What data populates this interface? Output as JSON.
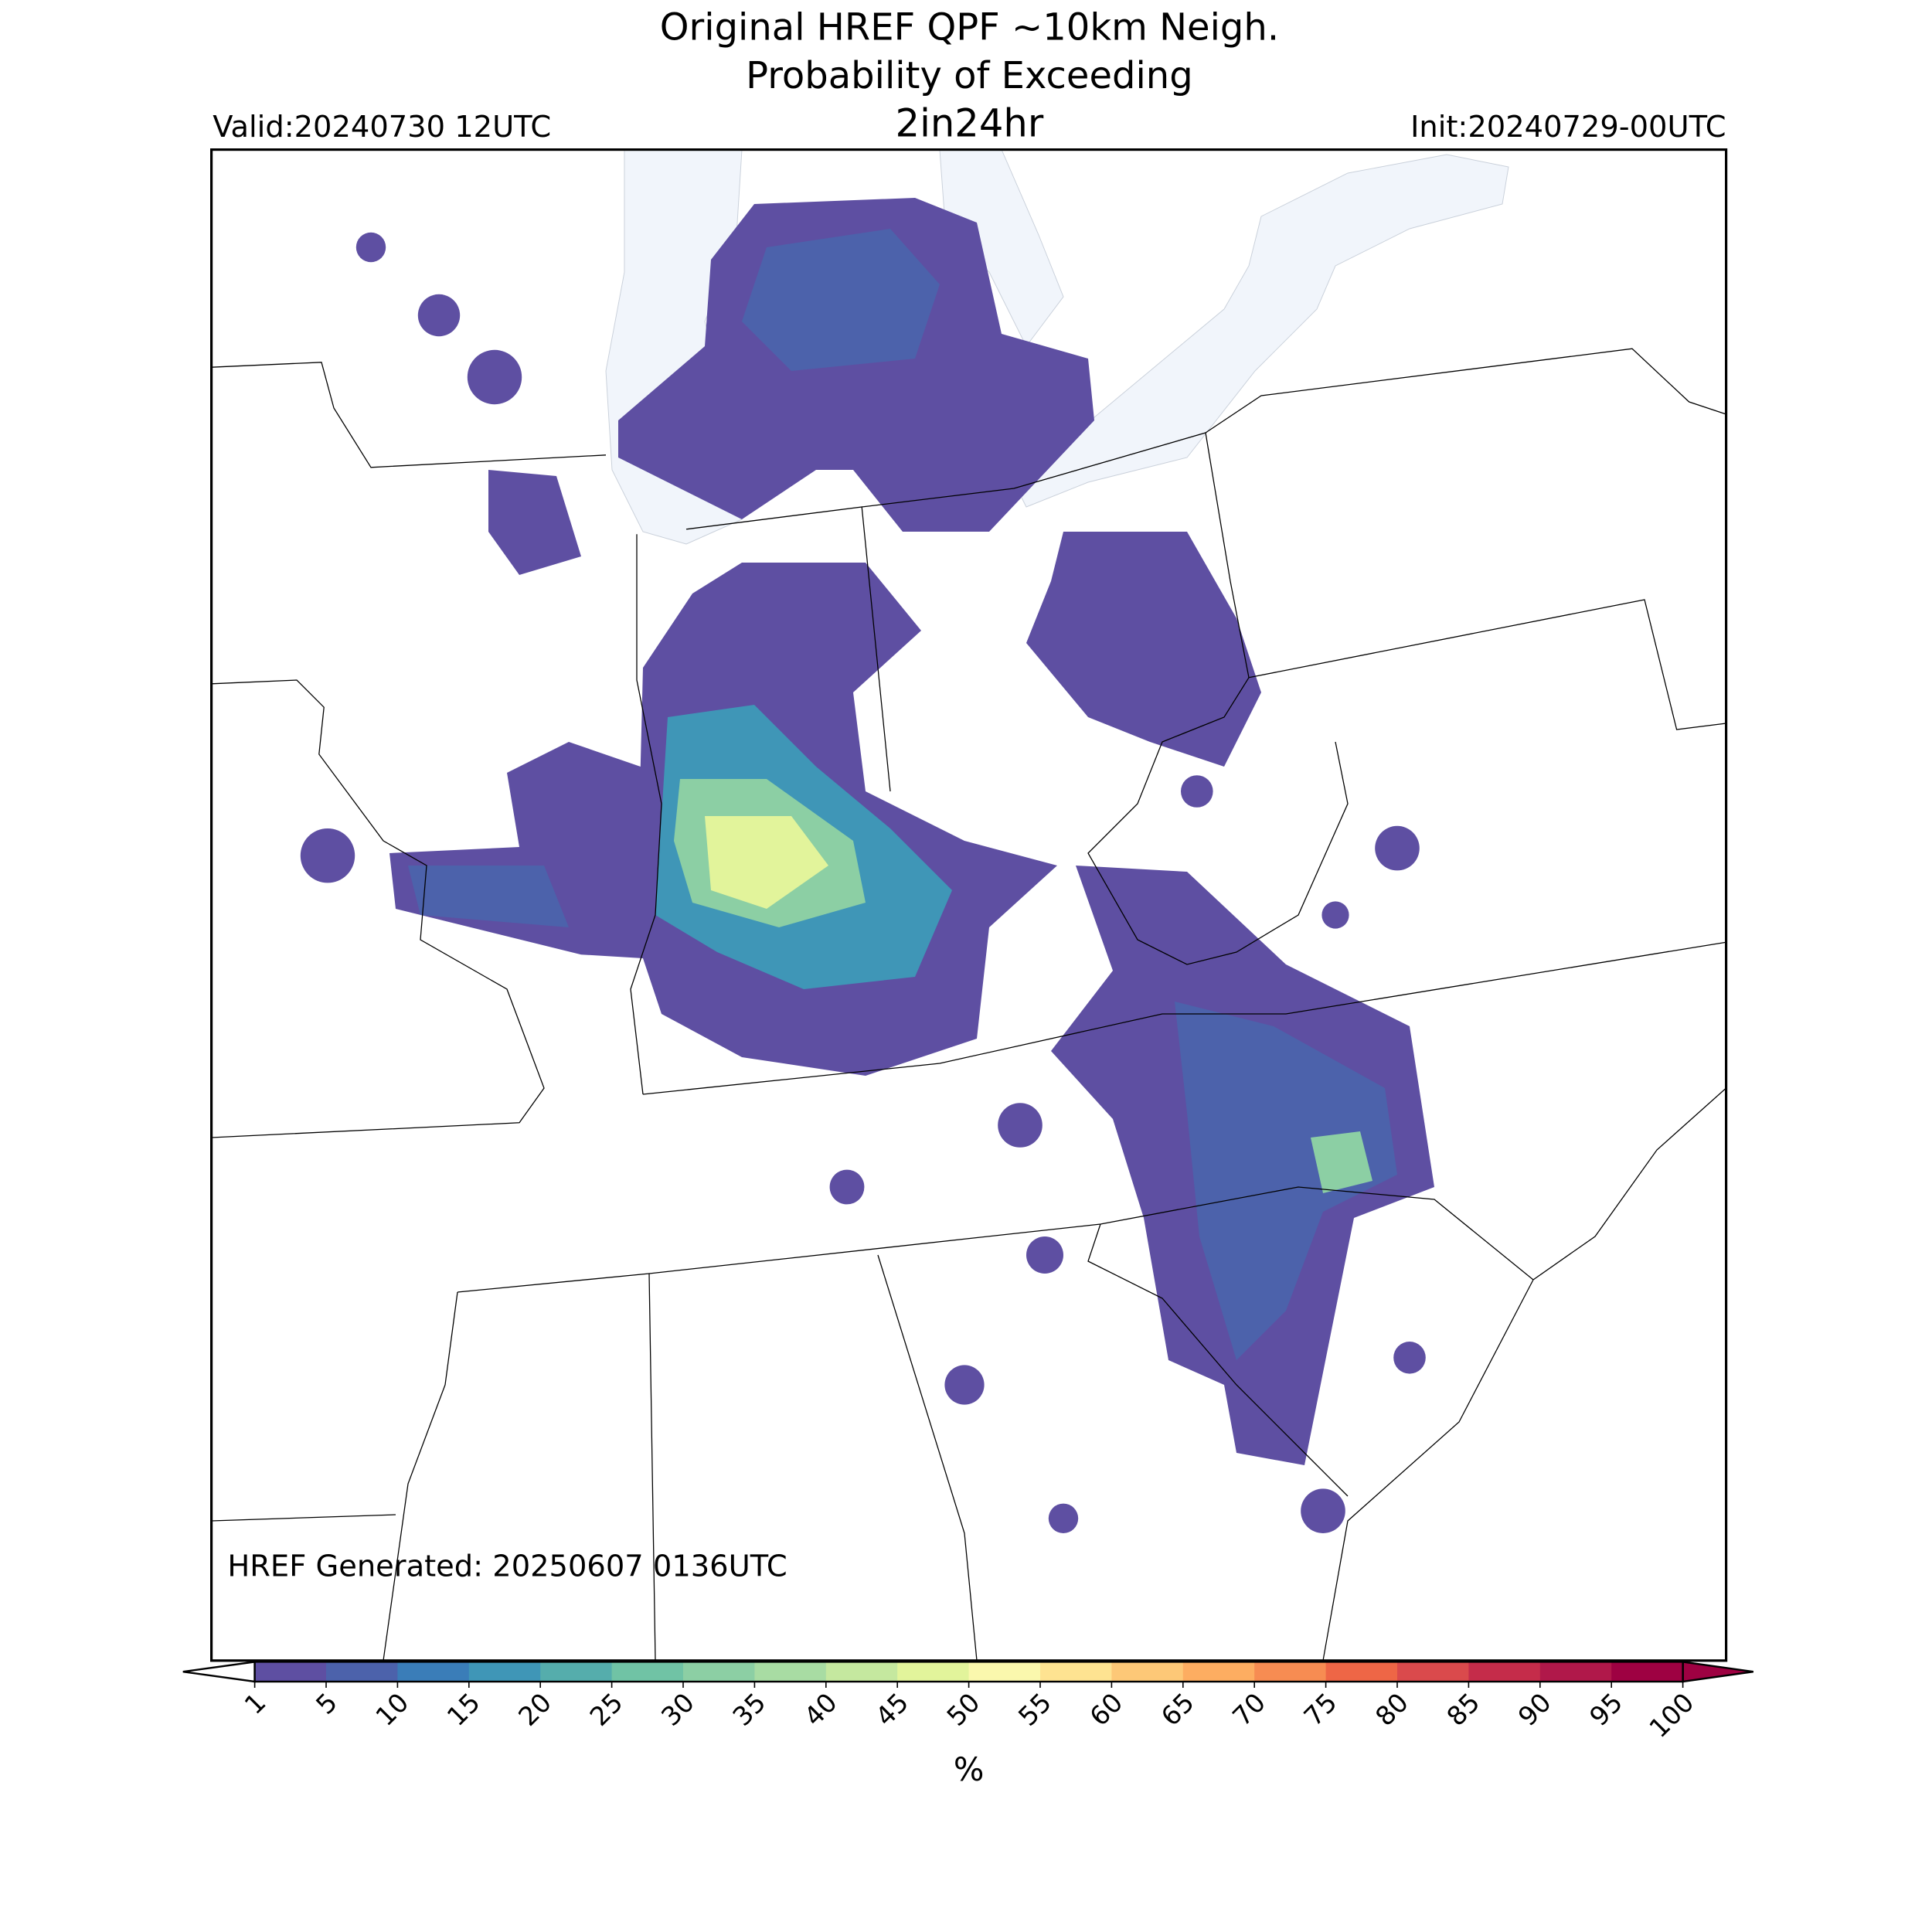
{
  "header": {
    "title": [
      "Original HREF QPF ~10km Neigh.",
      "Probability of Exceeding"
    ],
    "threshold": "2in24hr",
    "valid": "Valid:20240730 12UTC",
    "init": "Init:20240729-00UTC"
  },
  "map": {
    "generated": "HREF Generated: 20250607 0136UTC"
  },
  "colorbar": {
    "label": "%",
    "ticks": [
      1,
      5,
      10,
      15,
      20,
      25,
      30,
      35,
      40,
      45,
      50,
      55,
      60,
      65,
      70,
      75,
      80,
      85,
      90,
      95,
      100
    ],
    "colors": [
      "#5e4fa2",
      "#4c62ab",
      "#3a7db8",
      "#3f96b7",
      "#55adac",
      "#70c3a5",
      "#8ccfa4",
      "#a8dca3",
      "#c5e89f",
      "#e2f49b",
      "#faf8ad",
      "#fee391",
      "#fdc877",
      "#fdad61",
      "#f78c52",
      "#ee6646",
      "#da4a4c",
      "#c52c4a",
      "#b0184a",
      "#9e0142"
    ],
    "under_color": "#ffffff",
    "over_color": "#9e0142"
  }
}
